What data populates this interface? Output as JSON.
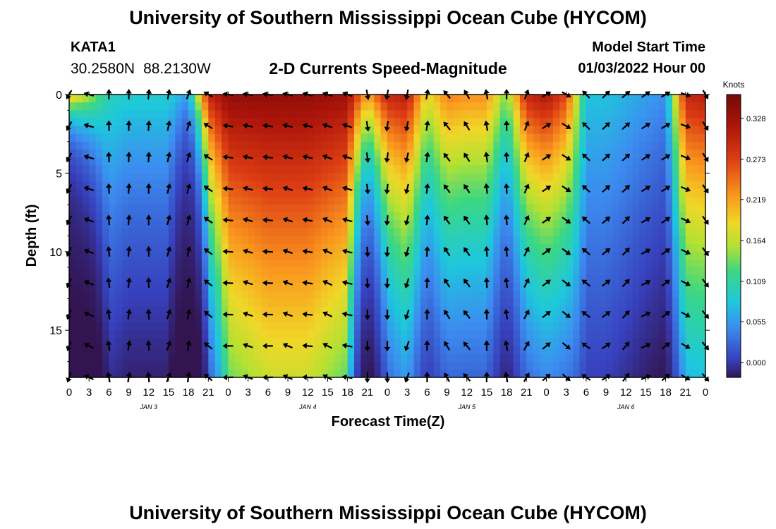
{
  "header": {
    "title": "University of Southern Mississippi Ocean Cube (HYCOM)",
    "station": "KATA1",
    "lat": "30.2580N",
    "lon": "88.2130W",
    "subtitle": "2-D Currents Speed-Magnitude",
    "model_start_label": "Model Start Time",
    "model_start_date": "01/03/2022",
    "model_start_hour": "Hour 00"
  },
  "footer": {
    "title": "University of Southern Mississippi Ocean Cube (HYCOM)"
  },
  "chart_data": {
    "type": "heatmap",
    "title": "2-D Currents Speed-Magnitude",
    "xlabel": "Forecast Time(Z)",
    "ylabel": "Depth (ft)",
    "x_ticks": [
      "0",
      "3",
      "6",
      "9",
      "12",
      "15",
      "18",
      "21",
      "0",
      "3",
      "6",
      "9",
      "12",
      "15",
      "18",
      "21",
      "0",
      "3",
      "6",
      "9",
      "12",
      "15",
      "18",
      "21",
      "0",
      "3",
      "6",
      "9",
      "12",
      "15",
      "18",
      "21",
      "0"
    ],
    "x_range_hours": [
      0,
      96
    ],
    "day_labels": [
      {
        "label": "JAN 3",
        "hour": 12
      },
      {
        "label": "JAN 4",
        "hour": 36
      },
      {
        "label": "JAN 5",
        "hour": 60
      },
      {
        "label": "JAN 6",
        "hour": 84
      }
    ],
    "y_ticks": [
      0,
      5,
      10,
      15
    ],
    "ylim": [
      0,
      18
    ],
    "y_inverted": true,
    "colorbar": {
      "label": "Knots",
      "ticks": [
        "0.328",
        "0.273",
        "0.219",
        "0.164",
        "0.109",
        "0.055",
        "0.000"
      ],
      "range": [
        -0.02,
        0.36
      ]
    },
    "time_hours": [
      0,
      6,
      9,
      12,
      15,
      18,
      21,
      24,
      30,
      36,
      42,
      45,
      48,
      51,
      54,
      57,
      60,
      63,
      66,
      69,
      72,
      75,
      78,
      81,
      84,
      90,
      93,
      96
    ],
    "surface_speed_knots": [
      0.22,
      0.1,
      0.09,
      0.09,
      0.09,
      0.06,
      0.3,
      0.34,
      0.34,
      0.34,
      0.33,
      0.22,
      0.3,
      0.31,
      0.18,
      0.24,
      0.23,
      0.23,
      0.14,
      0.3,
      0.32,
      0.27,
      0.08,
      0.08,
      0.07,
      0.05,
      0.3,
      0.31
    ],
    "depth_decay_per_ft": [
      0.6,
      0.08,
      0.1,
      0.1,
      0.1,
      0.4,
      0.1,
      0.04,
      0.03,
      0.03,
      0.04,
      0.2,
      0.09,
      0.07,
      0.1,
      0.08,
      0.08,
      0.08,
      0.12,
      0.09,
      0.08,
      0.08,
      0.05,
      0.05,
      0.06,
      0.1,
      0.06,
      0.06
    ],
    "direction_deg_from_north": [
      -150,
      0,
      0,
      5,
      10,
      20,
      -60,
      -80,
      -80,
      -75,
      -70,
      170,
      -170,
      -170,
      10,
      -40,
      -30,
      -10,
      0,
      20,
      60,
      120,
      -45,
      45,
      50,
      60,
      110,
      150
    ],
    "arrow_depths_ft": [
      0,
      2,
      4,
      6,
      8,
      10,
      12,
      14,
      16,
      18
    ]
  }
}
